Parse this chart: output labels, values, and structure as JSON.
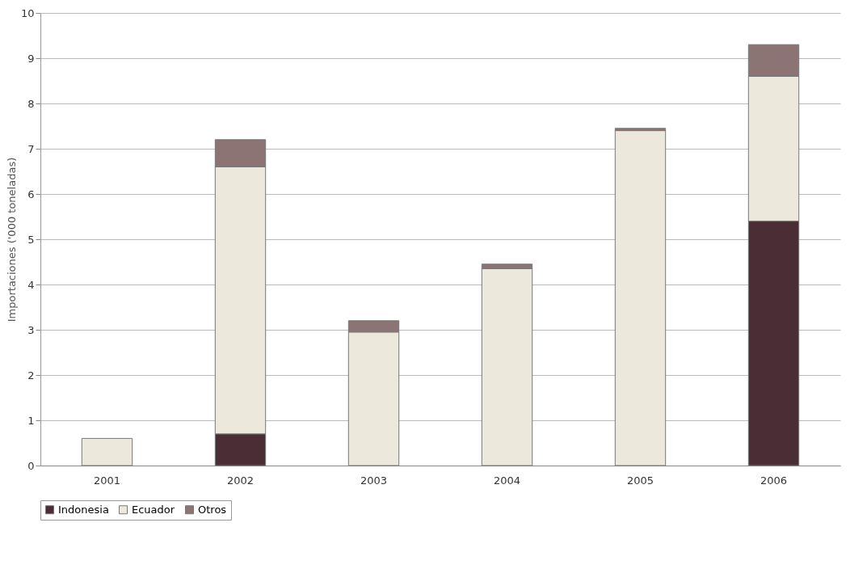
{
  "chart_data": {
    "type": "bar",
    "stacked": true,
    "ylabel": "Importaciones ('000 toneladas)",
    "categories": [
      "2001",
      "2002",
      "2003",
      "2004",
      "2005",
      "2006"
    ],
    "series": [
      {
        "name": "Indonesia",
        "color": "#4a2d35",
        "values": [
          null,
          0.7,
          null,
          null,
          null,
          5.4
        ]
      },
      {
        "name": "Ecuador",
        "color": "#ece8dc",
        "values": [
          0.6,
          5.9,
          2.95,
          4.35,
          7.4,
          3.2
        ]
      },
      {
        "name": "Otros",
        "color": "#8c7474",
        "values": [
          null,
          0.6,
          0.25,
          0.1,
          0.05,
          0.7
        ]
      }
    ],
    "ylim": [
      0,
      10
    ],
    "yticks": [
      0,
      1,
      2,
      3,
      4,
      5,
      6,
      7,
      8,
      9,
      10
    ],
    "grid": "y",
    "legend": "bottom"
  }
}
